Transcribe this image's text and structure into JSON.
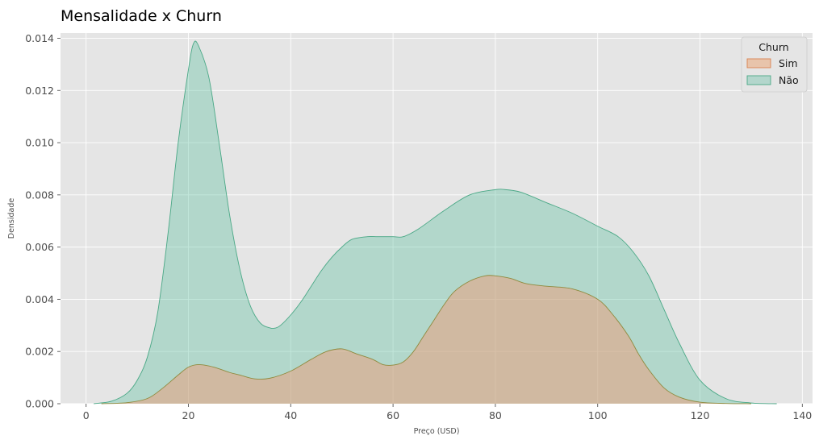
{
  "chart_data": {
    "type": "area",
    "title": "Mensalidade x Churn",
    "xlabel": "Preço (USD)",
    "ylabel": "Densidade",
    "xlim": [
      -5,
      142
    ],
    "ylim": [
      0,
      0.0142
    ],
    "xticks": [
      {
        "value": 0,
        "label": "0"
      },
      {
        "value": 20,
        "label": "20"
      },
      {
        "value": 40,
        "label": "40"
      },
      {
        "value": 60,
        "label": "60"
      },
      {
        "value": 80,
        "label": "80"
      },
      {
        "value": 100,
        "label": "100"
      },
      {
        "value": 120,
        "label": "120"
      },
      {
        "value": 140,
        "label": "140"
      }
    ],
    "yticks": [
      {
        "value": 0.0,
        "label": "0.000"
      },
      {
        "value": 0.002,
        "label": "0.002"
      },
      {
        "value": 0.004,
        "label": "0.004"
      },
      {
        "value": 0.006,
        "label": "0.006"
      },
      {
        "value": 0.008,
        "label": "0.008"
      },
      {
        "value": 0.01,
        "label": "0.010"
      },
      {
        "value": 0.012,
        "label": "0.012"
      },
      {
        "value": 0.014,
        "label": "0.014"
      }
    ],
    "grid": true,
    "legend": {
      "title": "Churn",
      "placement": "top-right"
    },
    "series": [
      {
        "name": "Não",
        "color": "#66c2a5",
        "fill_color": "#b3d6cc",
        "stroke_color": "#4aa886",
        "x": [
          1.5,
          5,
          8,
          10,
          12,
          14,
          16,
          18,
          20,
          21,
          22,
          24,
          26,
          28,
          30,
          32,
          34,
          36,
          37,
          38,
          40,
          42,
          44,
          46,
          48,
          50,
          52,
          55,
          57,
          60,
          62,
          65,
          70,
          75,
          80,
          82,
          85,
          90,
          95,
          100,
          104,
          107,
          110,
          113,
          116,
          120,
          125,
          130,
          135
        ],
        "values": [
          0.0,
          0.0001,
          0.0004,
          0.0009,
          0.0018,
          0.0035,
          0.0065,
          0.01,
          0.0128,
          0.0138,
          0.0137,
          0.0125,
          0.01,
          0.0073,
          0.0052,
          0.0038,
          0.0031,
          0.0029,
          0.0029,
          0.003,
          0.0034,
          0.0039,
          0.0045,
          0.0051,
          0.0056,
          0.006,
          0.0063,
          0.0064,
          0.0064,
          0.0064,
          0.0064,
          0.0067,
          0.0074,
          0.008,
          0.0082,
          0.0082,
          0.0081,
          0.0077,
          0.0073,
          0.0068,
          0.0064,
          0.0058,
          0.0049,
          0.0036,
          0.0023,
          0.0009,
          0.0002,
          3e-05,
          0.0
        ]
      },
      {
        "name": "Sim",
        "color": "#fc8d62",
        "fill_color": "#e8c4ab",
        "stroke_color": "#8f8a3e",
        "x": [
          3,
          8,
          12,
          15,
          18,
          20,
          22,
          25,
          28,
          30,
          33,
          36,
          40,
          44,
          47,
          50,
          53,
          56,
          58,
          60,
          62,
          64,
          66,
          68,
          70,
          72,
          75,
          78,
          80,
          83,
          86,
          90,
          95,
          100,
          103,
          106,
          108,
          110,
          113,
          116,
          120,
          125,
          130
        ],
        "values": [
          0.0,
          4e-05,
          0.0002,
          0.0006,
          0.0011,
          0.0014,
          0.0015,
          0.0014,
          0.0012,
          0.0011,
          0.00095,
          0.00098,
          0.00125,
          0.0017,
          0.002,
          0.0021,
          0.0019,
          0.0017,
          0.0015,
          0.00148,
          0.0016,
          0.002,
          0.0026,
          0.0032,
          0.0038,
          0.0043,
          0.0047,
          0.0049,
          0.0049,
          0.0048,
          0.0046,
          0.0045,
          0.0044,
          0.004,
          0.0034,
          0.0026,
          0.0019,
          0.0013,
          0.0006,
          0.00025,
          6e-05,
          1e-05,
          0.0
        ]
      }
    ]
  }
}
